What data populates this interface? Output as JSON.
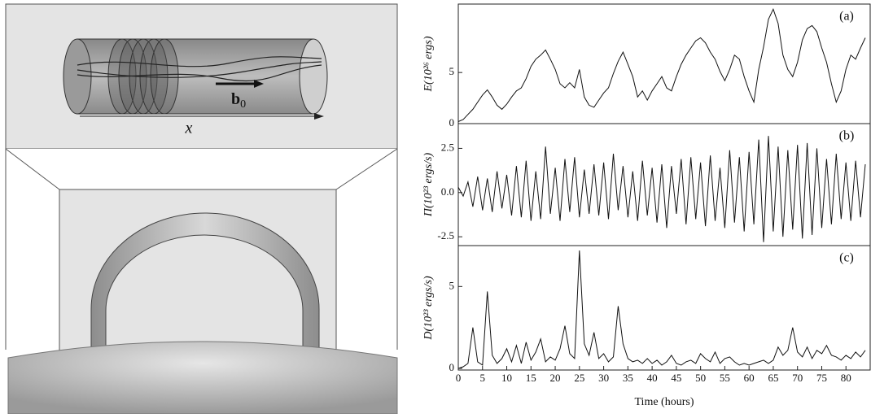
{
  "diagram": {
    "x_label": "x",
    "b_label": "b",
    "b_subscript": "0"
  },
  "chart_data": [
    {
      "type": "line",
      "panel_label": "(a)",
      "y_label": "E(10²⁶ ergs)",
      "color": "#111111",
      "xlim": [
        0,
        85
      ],
      "ylim": [
        0,
        11.7
      ],
      "yticks": [
        0,
        5
      ],
      "x": [
        0,
        1,
        2,
        3,
        4,
        5,
        6,
        7,
        8,
        9,
        10,
        11,
        12,
        13,
        14,
        15,
        16,
        17,
        18,
        19,
        20,
        21,
        22,
        23,
        24,
        25,
        26,
        27,
        28,
        29,
        30,
        31,
        32,
        33,
        34,
        35,
        36,
        37,
        38,
        39,
        40,
        41,
        42,
        43,
        44,
        45,
        46,
        47,
        48,
        49,
        50,
        51,
        52,
        53,
        54,
        55,
        56,
        57,
        58,
        59,
        60,
        61,
        62,
        63,
        64,
        65,
        66,
        67,
        68,
        69,
        70,
        71,
        72,
        73,
        74,
        75,
        76,
        77,
        78,
        79,
        80,
        81,
        82,
        83,
        84
      ],
      "values": [
        0.2,
        0.4,
        0.9,
        1.4,
        2.1,
        2.8,
        3.3,
        2.6,
        1.8,
        1.4,
        1.9,
        2.6,
        3.2,
        3.5,
        4.4,
        5.6,
        6.3,
        6.7,
        7.2,
        6.3,
        5.3,
        3.9,
        3.5,
        4.0,
        3.5,
        5.3,
        2.6,
        1.8,
        1.6,
        2.3,
        3.0,
        3.5,
        4.9,
        6.1,
        7.0,
        5.8,
        4.6,
        2.6,
        3.2,
        2.3,
        3.2,
        3.9,
        4.6,
        3.5,
        3.2,
        4.6,
        5.8,
        6.7,
        7.4,
        8.1,
        8.4,
        7.9,
        7.0,
        6.3,
        5.1,
        4.2,
        5.3,
        6.7,
        6.3,
        4.6,
        3.2,
        2.1,
        5.3,
        7.5,
        10.2,
        11.2,
        9.8,
        6.7,
        5.3,
        4.6,
        6.0,
        8.2,
        9.3,
        9.6,
        9.0,
        7.4,
        6.0,
        3.9,
        2.1,
        3.2,
        5.3,
        6.7,
        6.3,
        7.4,
        8.4
      ]
    },
    {
      "type": "line",
      "panel_label": "(b)",
      "y_label": "Π(10²³ ergs/s)",
      "color": "#111111",
      "xlim": [
        0,
        85
      ],
      "ylim": [
        -3.0,
        3.9
      ],
      "yticks": [
        -2.5,
        {
          "value": 0,
          "label": "0.0"
        },
        2.5
      ],
      "x": [
        0,
        1,
        2,
        3,
        4,
        5,
        6,
        7,
        8,
        9,
        10,
        11,
        12,
        13,
        14,
        15,
        16,
        17,
        18,
        19,
        20,
        21,
        22,
        23,
        24,
        25,
        26,
        27,
        28,
        29,
        30,
        31,
        32,
        33,
        34,
        35,
        36,
        37,
        38,
        39,
        40,
        41,
        42,
        43,
        44,
        45,
        46,
        47,
        48,
        49,
        50,
        51,
        52,
        53,
        54,
        55,
        56,
        57,
        58,
        59,
        60,
        61,
        62,
        63,
        64,
        65,
        66,
        67,
        68,
        69,
        70,
        71,
        72,
        73,
        74,
        75,
        76,
        77,
        78,
        79,
        80,
        81,
        82,
        83,
        84
      ],
      "values": [
        0.3,
        -0.2,
        0.6,
        -0.8,
        0.9,
        -1.0,
        0.8,
        -1.1,
        1.2,
        -0.9,
        1.0,
        -1.3,
        1.5,
        -1.4,
        1.8,
        -1.6,
        1.2,
        -1.5,
        2.6,
        -1.2,
        1.4,
        -1.6,
        1.9,
        -1.1,
        2.0,
        -1.4,
        1.3,
        -1.2,
        1.6,
        -1.3,
        1.7,
        -1.5,
        2.2,
        -1.0,
        1.5,
        -1.4,
        1.2,
        -1.6,
        1.8,
        -1.3,
        1.4,
        -1.7,
        1.6,
        -2.0,
        1.5,
        -1.2,
        1.9,
        -1.8,
        2.0,
        -1.5,
        1.7,
        -1.9,
        2.1,
        -1.6,
        1.4,
        -2.0,
        2.4,
        -1.7,
        2.0,
        -2.2,
        2.3,
        -1.8,
        3.0,
        -2.8,
        3.2,
        -2.2,
        2.6,
        -2.5,
        2.4,
        -2.1,
        2.7,
        -2.6,
        2.8,
        -2.4,
        2.5,
        -2.0,
        1.9,
        -1.8,
        2.2,
        -1.5,
        1.7,
        -1.6,
        1.8,
        -1.4,
        1.6
      ]
    },
    {
      "type": "line",
      "panel_label": "(c)",
      "y_label": "D(10²³ ergs/s)",
      "color": "#111111",
      "x_label": "Time (hours)",
      "xlim": [
        0,
        85
      ],
      "xticks": [
        0,
        5,
        10,
        15,
        20,
        25,
        30,
        35,
        40,
        45,
        50,
        55,
        60,
        65,
        70,
        75,
        80
      ],
      "ylim": [
        -0.1,
        7.5
      ],
      "yticks": [
        0,
        5
      ],
      "x": [
        0,
        1,
        2,
        3,
        4,
        5,
        6,
        7,
        8,
        9,
        10,
        11,
        12,
        13,
        14,
        15,
        16,
        17,
        18,
        19,
        20,
        21,
        22,
        23,
        24,
        25,
        26,
        27,
        28,
        29,
        30,
        31,
        32,
        33,
        34,
        35,
        36,
        37,
        38,
        39,
        40,
        41,
        42,
        43,
        44,
        45,
        46,
        47,
        48,
        49,
        50,
        51,
        52,
        53,
        54,
        55,
        56,
        57,
        58,
        59,
        60,
        61,
        62,
        63,
        64,
        65,
        66,
        67,
        68,
        69,
        70,
        71,
        72,
        73,
        74,
        75,
        76,
        77,
        78,
        79,
        80,
        81,
        82,
        83,
        84
      ],
      "values": [
        0.0,
        0.1,
        0.3,
        2.5,
        0.4,
        0.2,
        4.7,
        0.8,
        0.3,
        0.6,
        1.2,
        0.4,
        1.4,
        0.3,
        1.6,
        0.5,
        1.0,
        1.8,
        0.4,
        0.7,
        0.5,
        1.2,
        2.6,
        0.9,
        0.6,
        7.2,
        1.5,
        0.8,
        2.2,
        0.6,
        0.9,
        0.4,
        0.7,
        3.8,
        1.5,
        0.6,
        0.4,
        0.5,
        0.3,
        0.6,
        0.3,
        0.5,
        0.2,
        0.4,
        0.8,
        0.3,
        0.2,
        0.4,
        0.5,
        0.3,
        0.9,
        0.6,
        0.4,
        1.0,
        0.3,
        0.6,
        0.7,
        0.4,
        0.2,
        0.3,
        0.2,
        0.3,
        0.4,
        0.5,
        0.3,
        0.5,
        1.3,
        0.8,
        1.1,
        2.5,
        1.0,
        0.7,
        1.3,
        0.6,
        1.1,
        0.9,
        1.4,
        0.8,
        0.7,
        0.5,
        0.8,
        0.6,
        1.0,
        0.7,
        1.1
      ]
    }
  ]
}
